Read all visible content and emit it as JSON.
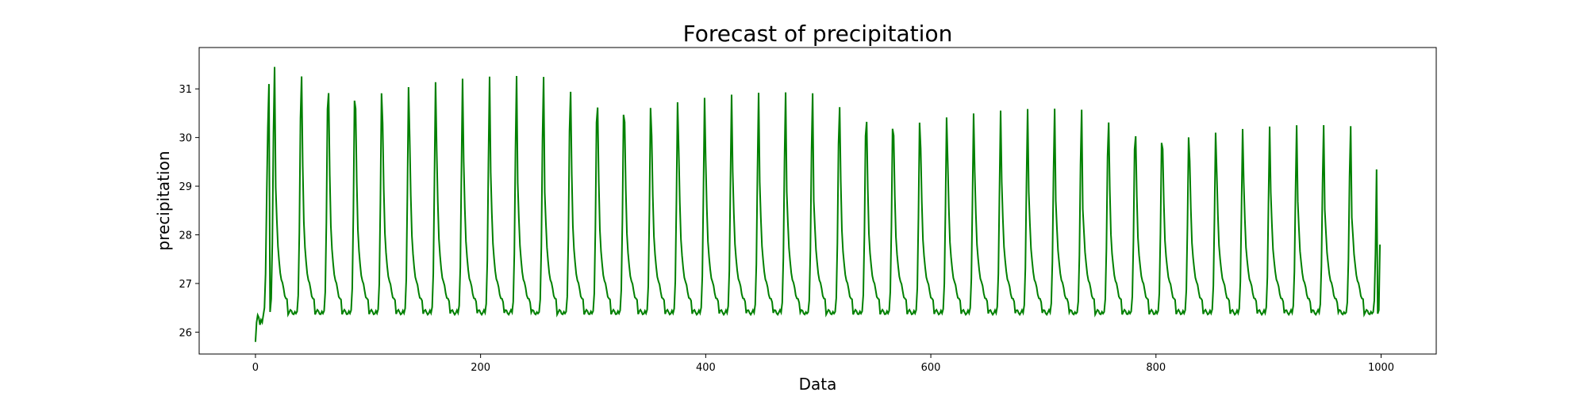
{
  "chart_data": {
    "type": "line",
    "title": "Forecast of precipitation",
    "xlabel": "Data",
    "ylabel": "precipitation",
    "xlim": [
      -50,
      1049
    ],
    "ylim": [
      25.55,
      31.85
    ],
    "xticks": [
      0,
      200,
      400,
      600,
      800,
      1000
    ],
    "yticks": [
      26,
      27,
      28,
      29,
      30,
      31
    ],
    "grid": false,
    "legend": "none",
    "series": [
      {
        "color": "#008000",
        "generator": {
          "n_points": 1000,
          "cycle_length": 23.9,
          "first_peak_x": 17,
          "first_peak_value": 31.45,
          "second_peak_value": 31.55,
          "last_peak_value": 30.2,
          "trough_value": 26.38,
          "start_values": [
            25.8,
            26.2,
            26.35,
            26.3,
            26.15,
            26.25,
            26.2,
            26.35,
            26.5,
            27.2,
            28.8,
            30.2,
            31.1
          ],
          "end_value": 27.8
        }
      }
    ]
  }
}
